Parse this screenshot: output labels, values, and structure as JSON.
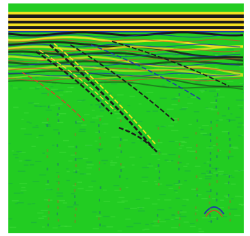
{
  "image": {
    "kind": "ground-penetrating radar radargram",
    "colors": {
      "background": "#22cc22",
      "positive": "#f2e020",
      "strong_positive": "#ffd23a",
      "negative": "#1a1a1a",
      "mid_negative": "#1f3aa8",
      "mid_positive": "#d4462a",
      "frame": "#ffffff"
    }
  }
}
